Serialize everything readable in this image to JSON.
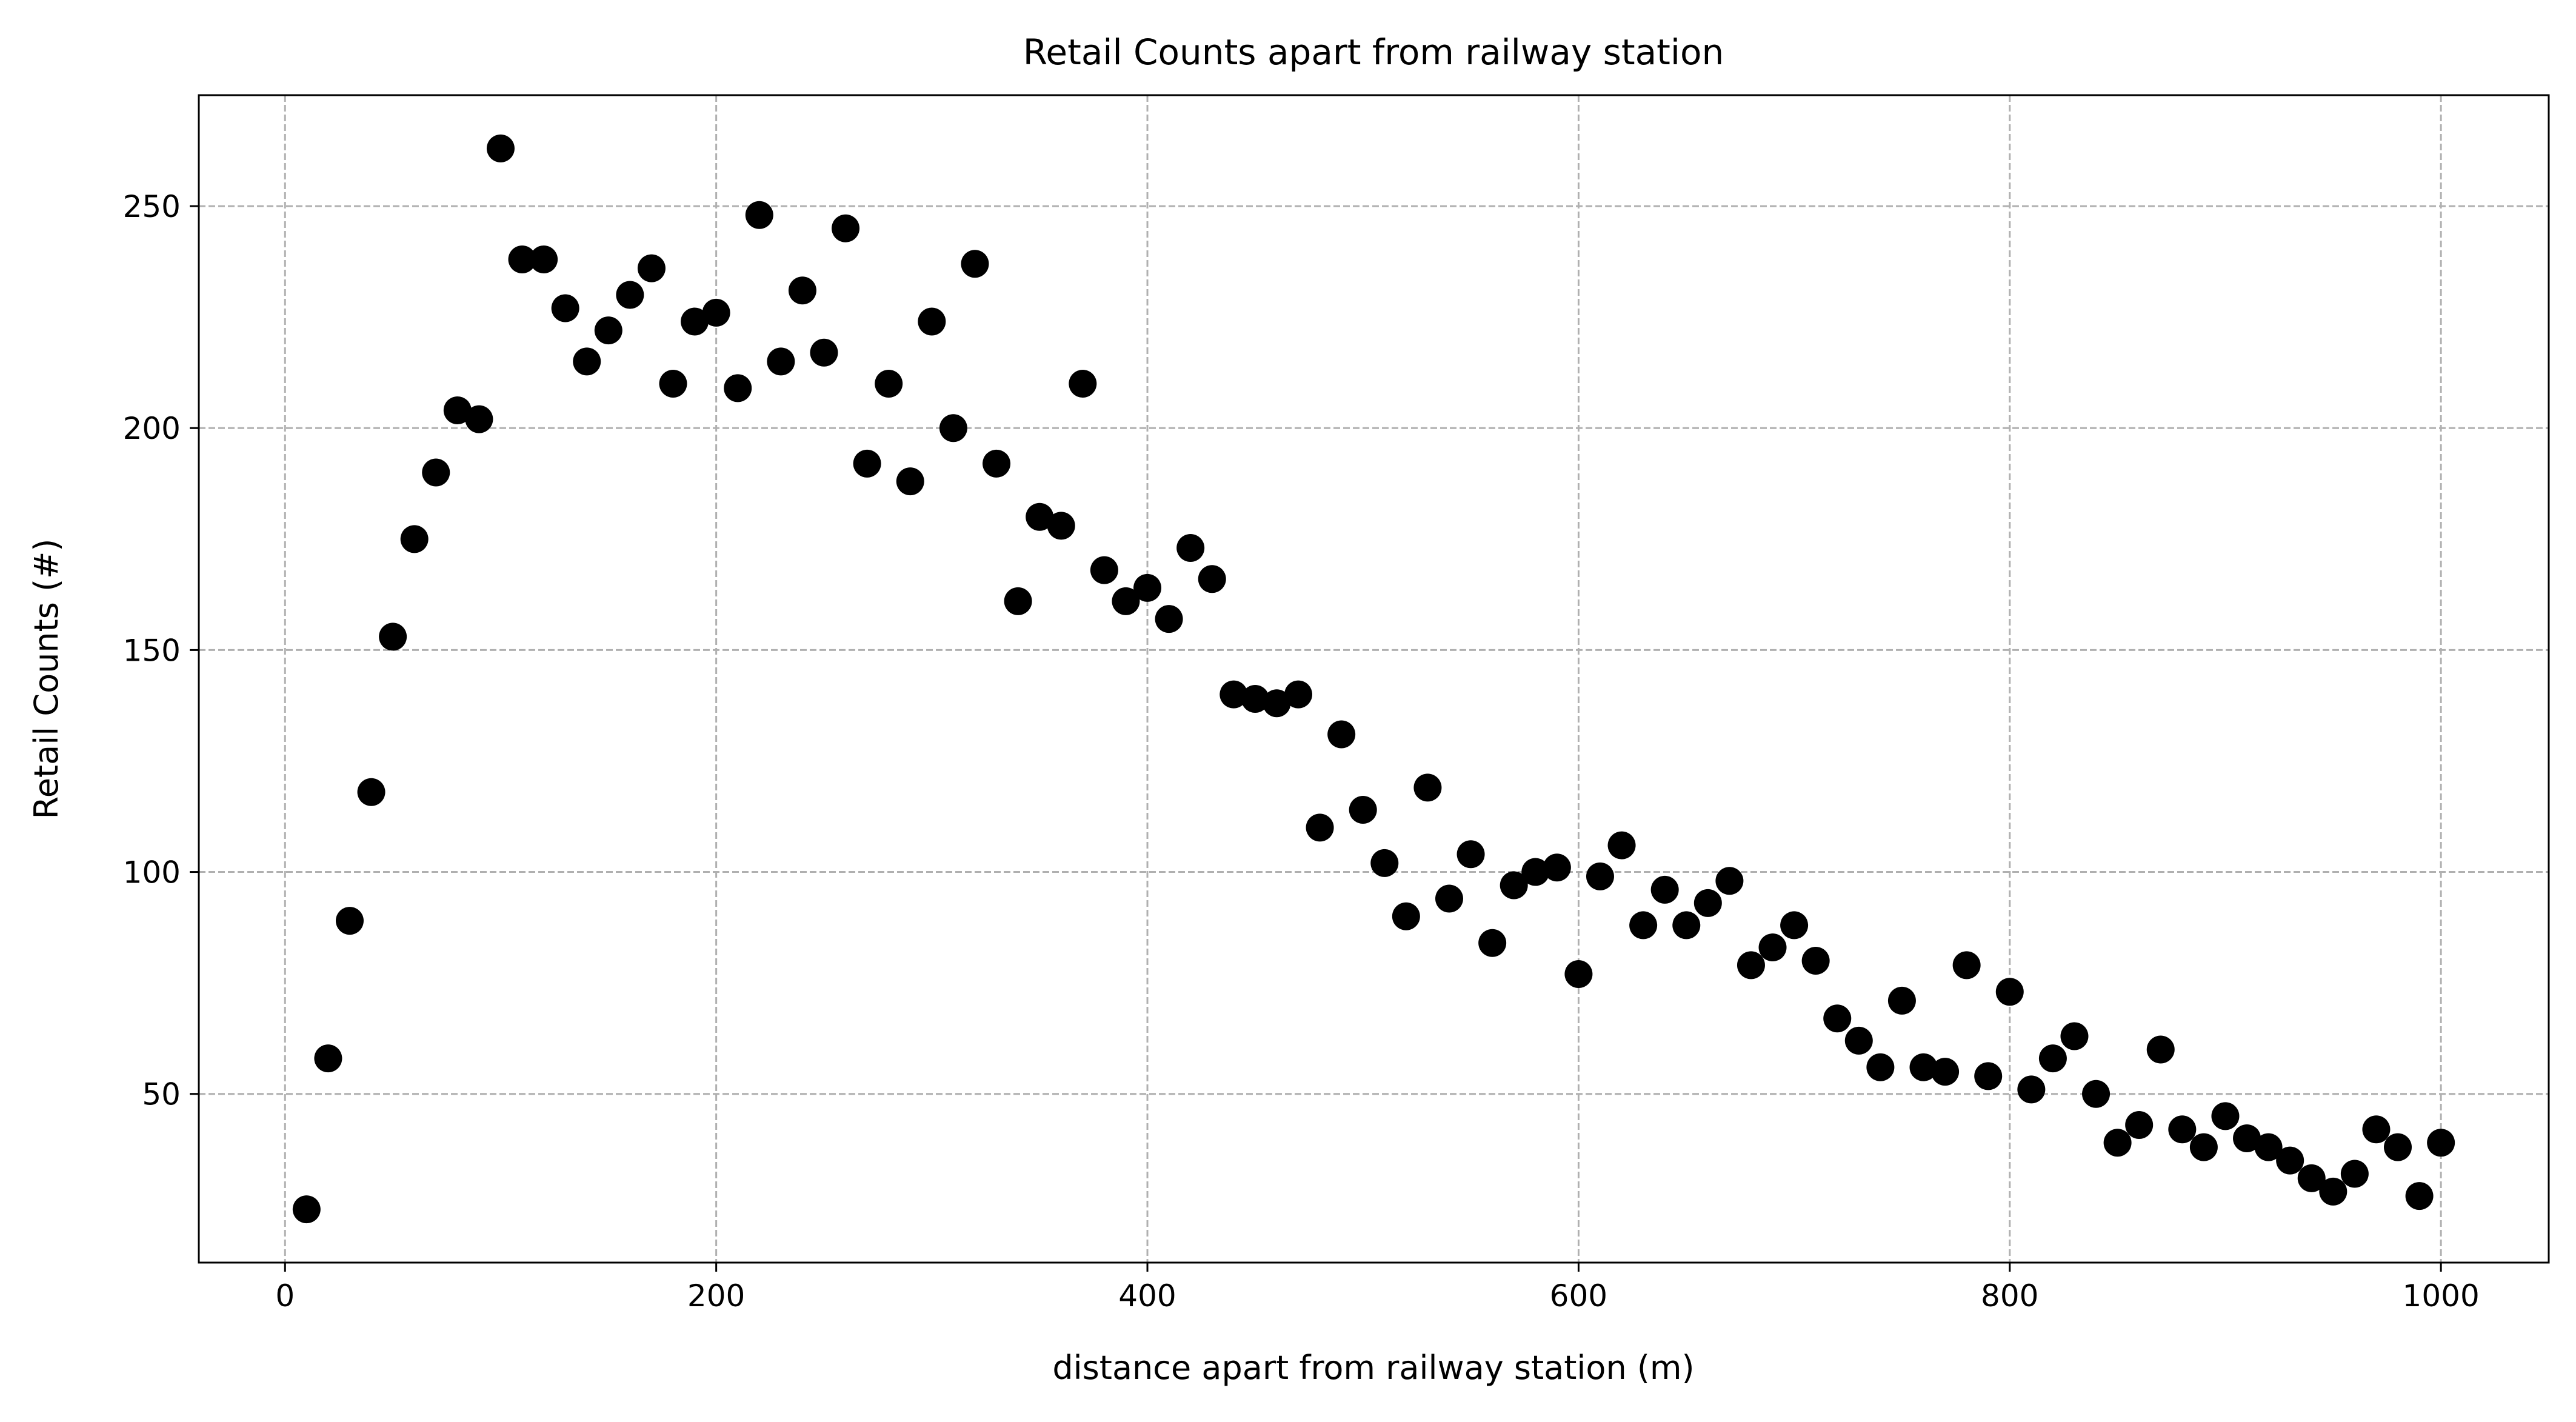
{
  "chart_data": {
    "type": "scatter",
    "title": "Retail Counts apart from railway station",
    "xlabel": "distance apart from railway station (m)",
    "ylabel": "Retail Counts (#)",
    "xlim": [
      -40,
      1050
    ],
    "ylim": [
      12,
      275
    ],
    "xticks": [
      0,
      200,
      400,
      600,
      800,
      1000
    ],
    "yticks": [
      50,
      100,
      150,
      200,
      250
    ],
    "grid": true,
    "legend": "none",
    "marker_color": "#000000",
    "grid_color": "#b0b0b0",
    "series": [
      {
        "x": [
          10,
          20,
          30,
          40,
          50,
          60,
          70,
          80,
          90,
          100,
          110,
          120,
          130,
          140,
          150,
          160,
          170,
          180,
          190,
          200,
          210,
          220,
          230,
          240,
          250,
          260,
          270,
          280,
          290,
          300,
          310,
          320,
          330,
          340,
          350,
          360,
          370,
          380,
          390,
          400,
          410,
          420,
          430,
          440,
          450,
          460,
          470,
          480,
          490,
          500,
          510,
          520,
          530,
          540,
          550,
          560,
          570,
          580,
          590,
          600,
          610,
          620,
          630,
          640,
          650,
          660,
          670,
          680,
          690,
          700,
          710,
          720,
          730,
          740,
          750,
          760,
          770,
          780,
          790,
          800,
          810,
          820,
          830,
          840,
          850,
          860,
          870,
          880,
          890,
          900,
          910,
          920,
          930,
          940,
          950,
          960,
          970,
          980,
          990,
          1000
        ],
        "y": [
          24,
          58,
          89,
          118,
          153,
          175,
          190,
          204,
          202,
          263,
          238,
          238,
          227,
          215,
          222,
          230,
          236,
          210,
          224,
          226,
          209,
          248,
          215,
          231,
          217,
          245,
          192,
          210,
          188,
          224,
          200,
          237,
          192,
          161,
          180,
          178,
          210,
          168,
          161,
          164,
          157,
          173,
          166,
          140,
          139,
          138,
          140,
          110,
          131,
          114,
          102,
          90,
          119,
          94,
          104,
          84,
          97,
          100,
          101,
          77,
          99,
          106,
          88,
          96,
          88,
          93,
          98,
          79,
          83,
          88,
          80,
          67,
          62,
          56,
          71,
          56,
          55,
          79,
          54,
          73,
          51,
          58,
          63,
          50,
          39,
          43,
          60,
          42,
          38,
          45,
          40,
          38,
          35,
          31,
          28,
          32,
          42,
          38,
          27,
          39
        ]
      }
    ]
  }
}
